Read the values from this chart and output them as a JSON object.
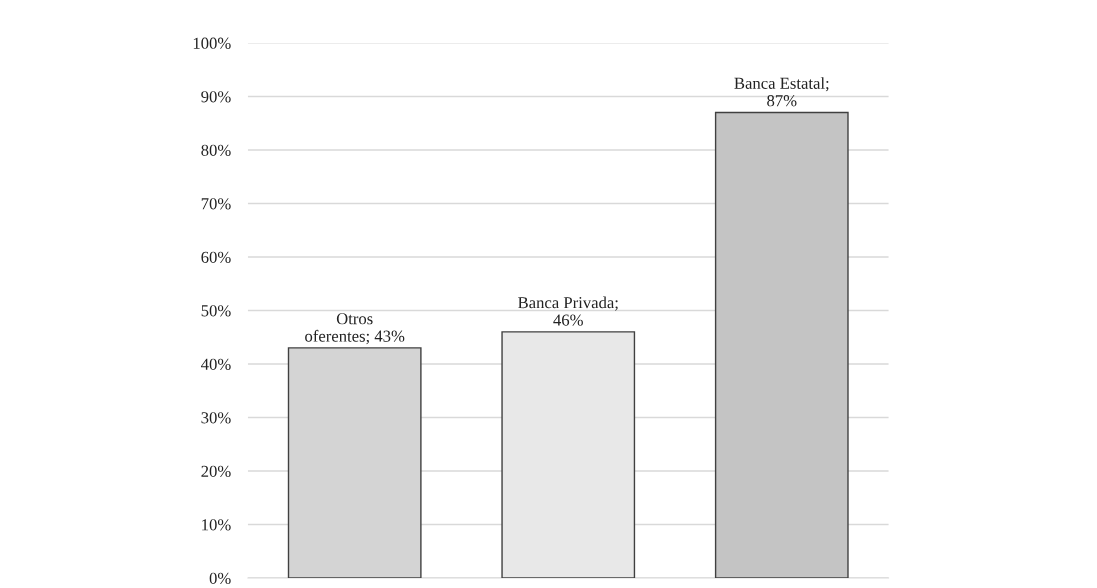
{
  "chart_data": {
    "type": "bar",
    "categories": [
      null,
      null,
      null
    ],
    "values": [
      43,
      46,
      87
    ],
    "colors": [
      "#d4d4d4",
      "#e8e8e8",
      "#c4c4c4"
    ],
    "value_labels": [
      "Otros\noferentes; 43%",
      "Banca Privada;\n46%",
      "Banca Estatal;\n87%"
    ],
    "ylim": [
      0,
      100
    ],
    "yticks": [
      {
        "value": 0,
        "label": "0%"
      },
      {
        "value": 10,
        "label": "10%"
      },
      {
        "value": 20,
        "label": "20%"
      },
      {
        "value": 30,
        "label": "30%"
      },
      {
        "value": 40,
        "label": "40%"
      },
      {
        "value": 50,
        "label": "50%"
      },
      {
        "value": 60,
        "label": "60%"
      },
      {
        "value": 70,
        "label": "70%"
      },
      {
        "value": 80,
        "label": "80%"
      },
      {
        "value": 90,
        "label": "90%"
      },
      {
        "value": 100,
        "label": "100%"
      }
    ],
    "grid": "y",
    "legend": false
  }
}
